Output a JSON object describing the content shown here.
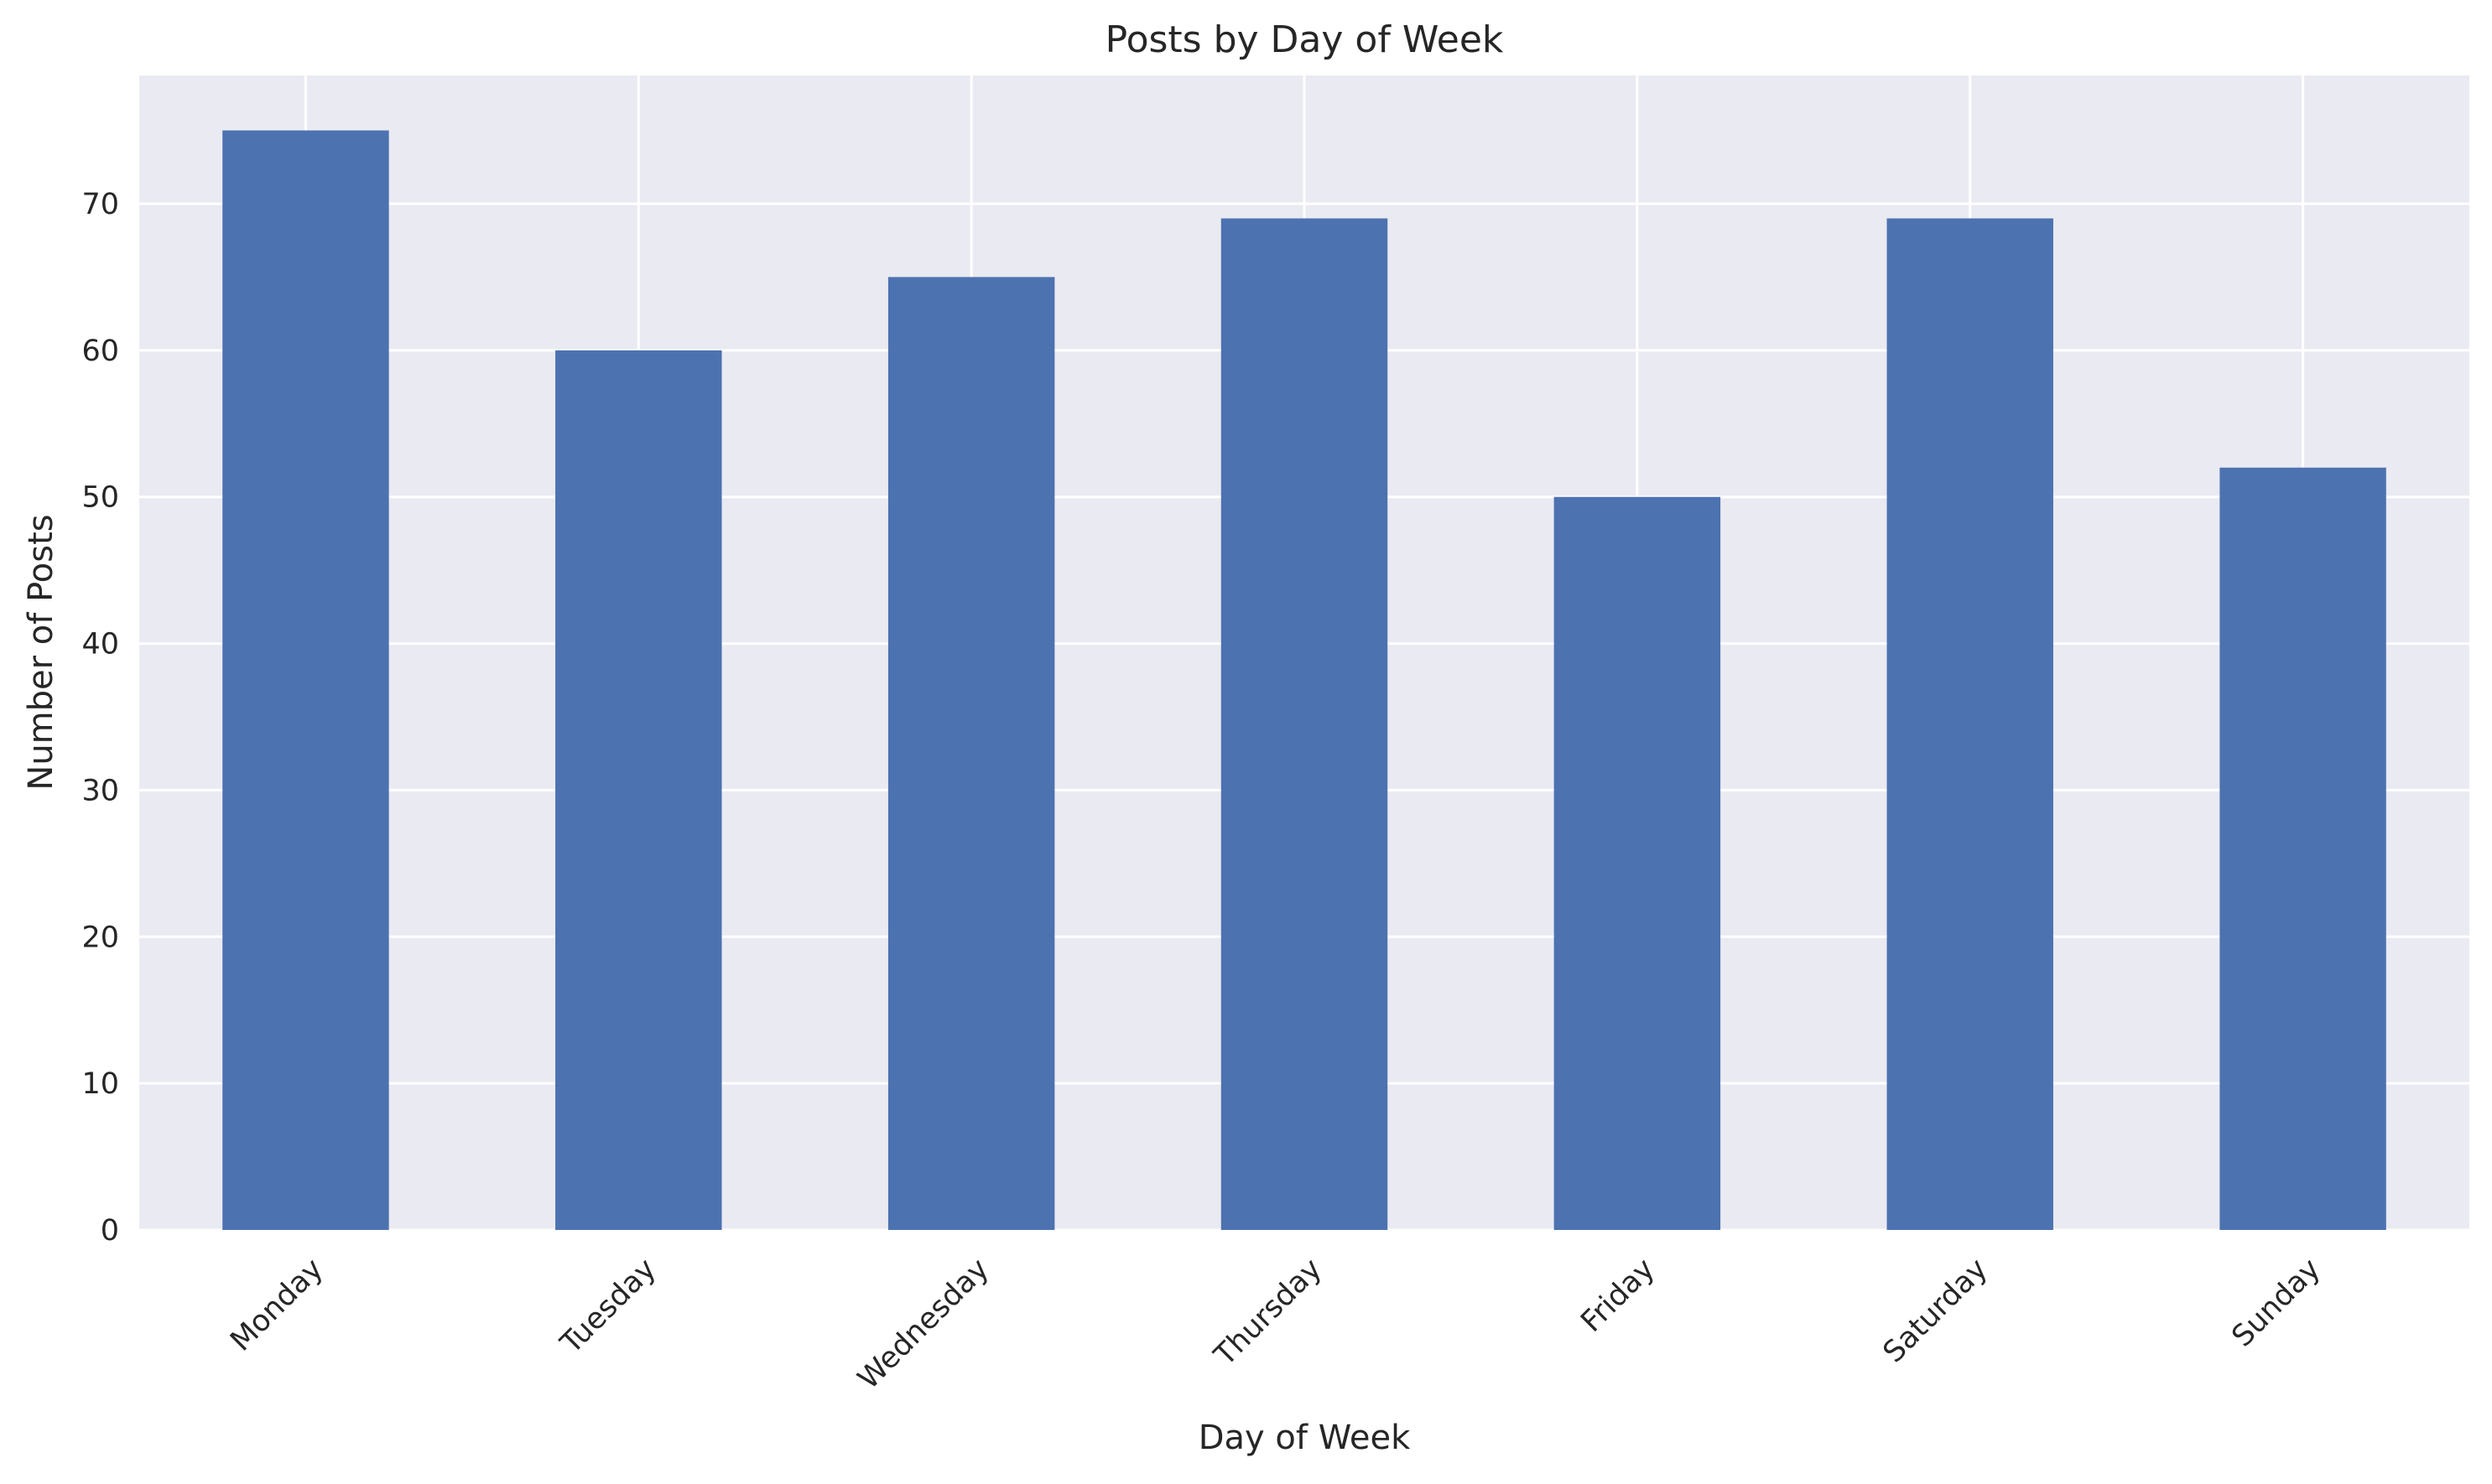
{
  "chart_data": {
    "type": "bar",
    "title": "Posts by Day of Week",
    "xlabel": "Day of Week",
    "ylabel": "Number of Posts",
    "categories": [
      "Monday",
      "Tuesday",
      "Wednesday",
      "Thursday",
      "Friday",
      "Saturday",
      "Sunday"
    ],
    "values": [
      75,
      60,
      65,
      69,
      50,
      69,
      52
    ],
    "ylim": [
      0,
      78.75
    ],
    "yticks": [
      0,
      10,
      20,
      30,
      40,
      50,
      60,
      70
    ],
    "grid": true,
    "bar_color": "#4c72b0",
    "plot_background": "#eaeaf2",
    "grid_color": "#ffffff"
  }
}
